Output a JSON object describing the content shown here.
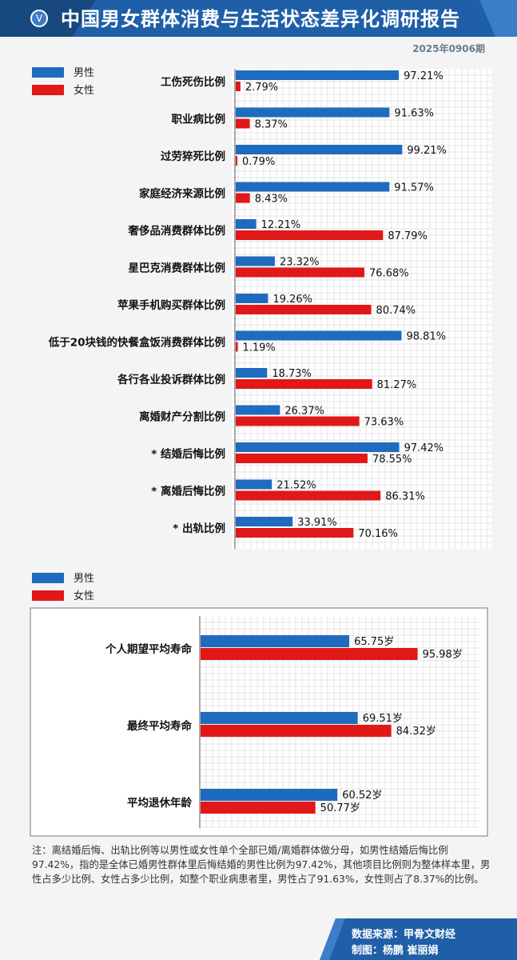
{
  "header": {
    "title": "中国男女群体消费与生活状态差异化调研报告",
    "issue": "2025年0906期",
    "badge": "V"
  },
  "chart_data": [
    {
      "type": "bar",
      "orientation": "horizontal",
      "legend": [
        {
          "name": "男性",
          "color": "#1f6bbf"
        },
        {
          "name": "女性",
          "color": "#e01818"
        }
      ],
      "legend_position": "top-left",
      "grid": true,
      "xlim": [
        0,
        100
      ],
      "categories": [
        "工伤死伤比例",
        "职业病比例",
        "过劳猝死比例",
        "家庭经济来源比例",
        "奢侈品消费群体比例",
        "星巴克消费群体比例",
        "苹果手机购买群体比例",
        "低于20块钱的快餐盒饭消费群体比例",
        "各行各业投诉群体比例",
        "离婚财产分割比例",
        "* 结婚后悔比例",
        "* 离婚后悔比例",
        "* 出轨比例"
      ],
      "series": [
        {
          "name": "男性",
          "values": [
            97.21,
            91.63,
            99.21,
            91.57,
            12.21,
            23.32,
            19.26,
            98.81,
            18.73,
            26.37,
            97.42,
            21.52,
            33.91
          ],
          "labels": [
            "97.21%",
            "91.63%",
            "99.21%",
            "91.57%",
            "12.21%",
            "23.32%",
            "19.26%",
            "98.81%",
            "18.73%",
            "26.37%",
            "97.42%",
            "21.52%",
            "33.91%"
          ]
        },
        {
          "name": "女性",
          "values": [
            2.79,
            8.37,
            0.79,
            8.43,
            87.79,
            76.68,
            80.74,
            1.19,
            81.27,
            73.63,
            78.55,
            86.31,
            70.16
          ],
          "labels": [
            "2.79%",
            "8.37%",
            "0.79%",
            "8.43%",
            "87.79%",
            "76.68%",
            "80.74%",
            "1.19%",
            "81.27%",
            "73.63%",
            "78.55%",
            "86.31%",
            "70.16%"
          ]
        }
      ]
    },
    {
      "type": "bar",
      "orientation": "horizontal",
      "legend": [
        {
          "name": "男性",
          "color": "#1f6bbf"
        },
        {
          "name": "女性",
          "color": "#e01818"
        }
      ],
      "legend_position": "top-left",
      "grid": true,
      "xlim": [
        0,
        110
      ],
      "categories": [
        "个人期望平均寿命",
        "最终平均寿命",
        "平均退休年龄"
      ],
      "series": [
        {
          "name": "男性",
          "values": [
            65.75,
            69.51,
            60.52
          ],
          "labels": [
            "65.75岁",
            "69.51岁",
            "60.52岁"
          ]
        },
        {
          "name": "女性",
          "values": [
            95.98,
            84.32,
            50.77
          ],
          "labels": [
            "95.98岁",
            "84.32岁",
            "50.77岁"
          ]
        }
      ]
    }
  ],
  "note": "注：离结婚后悔、出轨比例等以男性或女性单个全部已婚/离婚群体做分母，如男性结婚后悔比例97.42%，指的是全体已婚男性群体里后悔结婚的男性比例为97.42%，其他项目比例则为整体样本里，男性占多少比例、女性占多少比例，如整个职业病患者里，男性占了91.63%，女性则占了8.37%的比例。",
  "footer": {
    "source": "数据来源：甲骨文财经",
    "maker": "制图：杨鹏  崔丽娟"
  }
}
